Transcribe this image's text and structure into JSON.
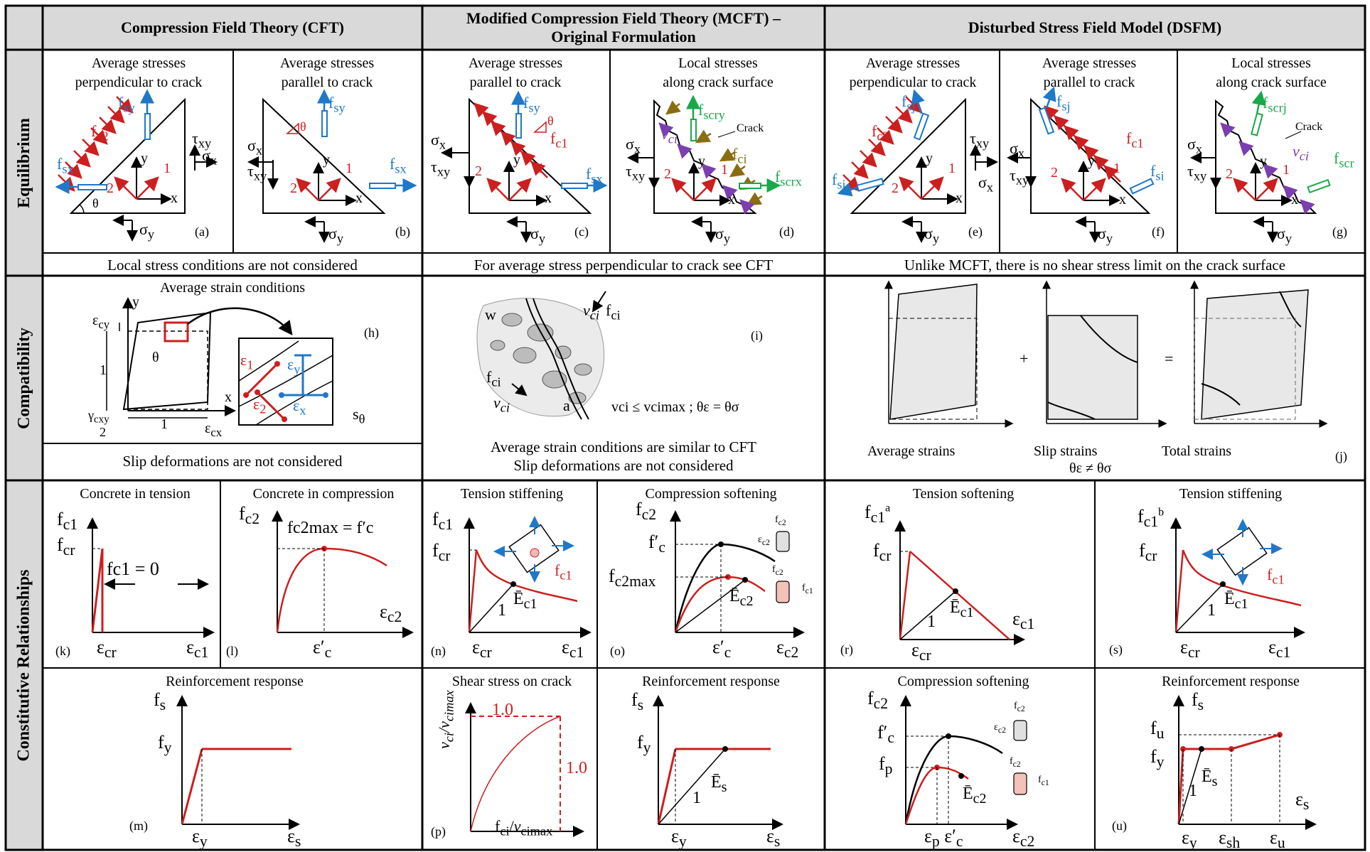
{
  "headers": {
    "cft": "Compression Field Theory (CFT)",
    "mcft_line1": "Modified Compression Field Theory (MCFT) –",
    "mcft_line2": "Original Formulation",
    "dsfm": "Disturbed Stress Field Model (DSFM)"
  },
  "rows": {
    "equilibrium": "Equilibrium",
    "compatibility": "Compatibility",
    "constitutive": "Constitutive Relationships"
  },
  "equilibrium": {
    "a": {
      "cap1": "Average stresses",
      "cap2": "perpendicular to crack",
      "label": "(a)"
    },
    "b": {
      "cap1": "Average stresses",
      "cap2": "parallel to crack",
      "label": "(b)"
    },
    "c": {
      "cap1": "Average stresses",
      "cap2": "parallel to crack",
      "label": "(c)"
    },
    "d": {
      "cap1": "Local stresses",
      "cap2": "along crack surface",
      "label": "(d)",
      "crack": "Crack"
    },
    "e": {
      "cap1": "Average stresses",
      "cap2": "perpendicular to crack",
      "label": "(e)"
    },
    "f": {
      "cap1": "Average stresses",
      "cap2": "parallel to crack",
      "label": "(f)"
    },
    "g": {
      "cap1": "Local stresses",
      "cap2": "along crack surface",
      "label": "(g)",
      "crack": "Crack"
    },
    "notes": {
      "cft": "Local stress conditions are not considered",
      "mcft": "For average stress perpendicular to crack see CFT",
      "dsfm": "Unlike MCFT, there is no shear stress limit on the crack surface"
    }
  },
  "compatibility": {
    "h": {
      "title": "Average strain conditions",
      "label": "(h)",
      "note": "Slip deformations are not considered"
    },
    "i": {
      "label": "(i)",
      "formula": "vci ≤ vcimax ; θε = θσ",
      "note1": "Average strain conditions are similar to CFT",
      "note2": "Slip deformations are not considered"
    },
    "j": {
      "label": "(j)",
      "avg": "Average strains",
      "slip": "Slip strains",
      "total": "Total strains",
      "ineq": "θε ≠ θσ",
      "plus": "+",
      "equals": "="
    }
  },
  "constitutive": {
    "k": {
      "title": "Concrete in tension",
      "label": "(k)",
      "fc1eq": "fc1 = 0"
    },
    "l": {
      "title": "Concrete in compression",
      "label": "(l)",
      "fmax": "fc2max = f′c"
    },
    "n": {
      "title": "Tension stiffening",
      "label": "(n)"
    },
    "o": {
      "title": "Compression softening",
      "label": "(o)"
    },
    "r": {
      "title": "Tension softening",
      "label": "(r)"
    },
    "s": {
      "title": "Tension stiffening",
      "label": "(s)"
    },
    "m": {
      "title": "Reinforcement response",
      "label": "(m)"
    },
    "p": {
      "title": "Shear stress on crack",
      "label": "(p)",
      "one": "1.0"
    },
    "q": {
      "title": "Reinforcement response"
    },
    "t": {
      "title": "Compression softening"
    },
    "u": {
      "title": "Reinforcement response",
      "label": "(u)"
    }
  },
  "colors": {
    "red": "#cc1f1f",
    "blue": "#1f78c8",
    "green": "#1aa84a",
    "olive": "#8a6d12",
    "purple": "#7b3fb0",
    "header_bg": "#d9d9d9"
  }
}
